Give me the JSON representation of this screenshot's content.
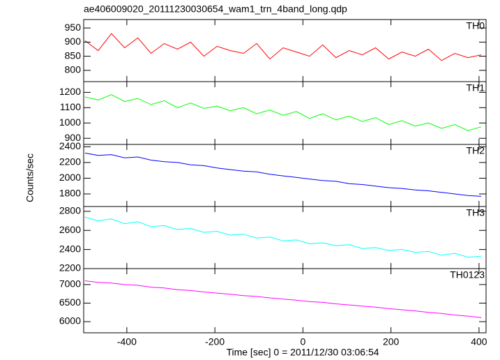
{
  "chart_data": {
    "type": "line",
    "title": "ae406009020_20111230030654_wam1_trn_4band_long.qdp",
    "x_label": "Time [sec] 0 = 2011/12/30 03:06:54",
    "y_label": "Counts/sec",
    "xlim": [
      -498,
      416
    ],
    "xticks": [
      -400,
      -200,
      0,
      200,
      400
    ],
    "x": [
      -495,
      -465,
      -435,
      -405,
      -375,
      -345,
      -315,
      -285,
      -255,
      -225,
      -195,
      -165,
      -135,
      -105,
      -75,
      -45,
      -15,
      15,
      45,
      75,
      105,
      135,
      165,
      195,
      225,
      255,
      285,
      315,
      345,
      375,
      405
    ],
    "series": [
      {
        "name": "TH0",
        "color": "#ff0000",
        "ylim": [
          760,
          980
        ],
        "yticks": [
          800,
          850,
          900,
          950
        ],
        "values": [
          905,
          870,
          930,
          880,
          915,
          860,
          895,
          875,
          900,
          850,
          885,
          870,
          860,
          895,
          840,
          880,
          865,
          850,
          890,
          845,
          870,
          855,
          880,
          840,
          865,
          850,
          875,
          835,
          860,
          845,
          855
        ]
      },
      {
        "name": "TH1",
        "color": "#00ff00",
        "ylim": [
          860,
          1270
        ],
        "yticks": [
          900,
          1000,
          1100,
          1200
        ],
        "values": [
          1170,
          1150,
          1185,
          1140,
          1160,
          1120,
          1145,
          1100,
          1130,
          1095,
          1110,
          1080,
          1100,
          1060,
          1085,
          1050,
          1075,
          1030,
          1060,
          1020,
          1045,
          1010,
          1035,
          990,
          1015,
          980,
          1000,
          965,
          990,
          950,
          975
        ]
      },
      {
        "name": "TH2",
        "color": "#0000ff",
        "ylim": [
          1640,
          2430
        ],
        "yticks": [
          1800,
          2000,
          2200,
          2400
        ],
        "values": [
          2320,
          2290,
          2300,
          2260,
          2270,
          2230,
          2210,
          2200,
          2170,
          2160,
          2130,
          2110,
          2090,
          2080,
          2050,
          2030,
          2010,
          1990,
          1970,
          1960,
          1930,
          1920,
          1900,
          1880,
          1870,
          1850,
          1840,
          1820,
          1800,
          1780,
          1770
        ]
      },
      {
        "name": "TH3",
        "color": "#00ffff",
        "ylim": [
          2200,
          2850
        ],
        "yticks": [
          2200,
          2400,
          2600,
          2800
        ],
        "values": [
          2740,
          2700,
          2720,
          2670,
          2690,
          2640,
          2650,
          2610,
          2620,
          2580,
          2590,
          2550,
          2560,
          2520,
          2530,
          2490,
          2500,
          2460,
          2470,
          2440,
          2450,
          2410,
          2420,
          2390,
          2400,
          2370,
          2380,
          2340,
          2360,
          2320,
          2330
        ]
      },
      {
        "name": "TH0123",
        "color": "#ff00ff",
        "ylim": [
          5700,
          7430
        ],
        "yticks": [
          6000,
          6500,
          7000
        ],
        "values": [
          7100,
          7060,
          7040,
          7000,
          6980,
          6930,
          6910,
          6860,
          6840,
          6800,
          6770,
          6740,
          6700,
          6680,
          6640,
          6610,
          6580,
          6540,
          6520,
          6480,
          6450,
          6420,
          6390,
          6350,
          6320,
          6290,
          6250,
          6220,
          6180,
          6150,
          6110
        ]
      }
    ]
  }
}
